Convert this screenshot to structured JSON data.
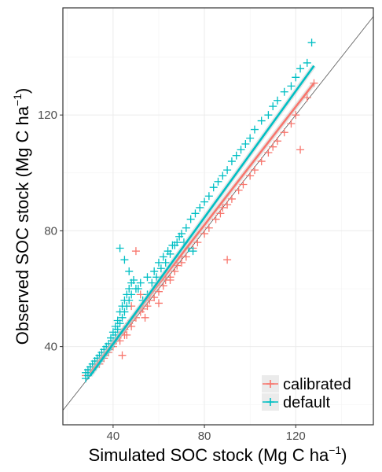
{
  "chart_data": {
    "type": "scatter",
    "title": "",
    "xlabel": "Simulated SOC stock (Mg C ha",
    "ylabel": "Observed SOC stock (Mg C ha",
    "label_superscript": "−1",
    "label_close": ")",
    "xlim": [
      18,
      154
    ],
    "ylim": [
      13,
      157
    ],
    "x_ticks": [
      40,
      80,
      120
    ],
    "y_ticks": [
      40,
      80,
      120
    ],
    "grid": true,
    "legend_position": "bottom-right",
    "reference_line": "1:1",
    "series": [
      {
        "name": "calibrated",
        "color": "#F8766D",
        "fit_line": {
          "from": [
            30,
            31
          ],
          "to": [
            128,
            131
          ]
        },
        "x": [
          28,
          29,
          30,
          31,
          32,
          33,
          33,
          34,
          35,
          35,
          36,
          37,
          37,
          38,
          39,
          40,
          40,
          41,
          42,
          43,
          43,
          44,
          45,
          45,
          46,
          47,
          48,
          48,
          50,
          52,
          53,
          55,
          56,
          58,
          60,
          62,
          63,
          65,
          67,
          70,
          72,
          75,
          77,
          80,
          82,
          85,
          87,
          88,
          90,
          92,
          95,
          97,
          100,
          102,
          105,
          108,
          110,
          112,
          115,
          118,
          120,
          122,
          125,
          128,
          44,
          46,
          48,
          50,
          52,
          54,
          60,
          65,
          90,
          68,
          70
        ],
        "y": [
          30,
          31,
          32,
          33,
          33,
          34,
          35,
          34,
          36,
          37,
          36,
          38,
          39,
          38,
          40,
          41,
          40,
          42,
          43,
          42,
          44,
          45,
          44,
          46,
          47,
          48,
          47,
          49,
          50,
          52,
          53,
          54,
          56,
          57,
          59,
          61,
          63,
          64,
          66,
          69,
          71,
          74,
          76,
          79,
          81,
          84,
          86,
          88,
          89,
          91,
          94,
          96,
          99,
          101,
          104,
          107,
          109,
          111,
          114,
          117,
          120,
          108,
          126,
          131,
          37,
          44,
          54,
          73,
          58,
          50,
          55,
          63,
          70,
          68,
          71
        ]
      },
      {
        "name": "default",
        "color": "#00BFC4",
        "fit_line": {
          "from": [
            30,
            30
          ],
          "to": [
            128,
            137
          ]
        },
        "x": [
          28,
          28,
          29,
          29,
          30,
          30,
          31,
          31,
          32,
          32,
          33,
          33,
          34,
          34,
          35,
          35,
          36,
          36,
          37,
          37,
          38,
          38,
          39,
          39,
          40,
          40,
          41,
          41,
          42,
          42,
          43,
          43,
          44,
          44,
          45,
          45,
          46,
          46,
          47,
          47,
          48,
          48,
          50,
          52,
          55,
          58,
          60,
          62,
          64,
          66,
          68,
          70,
          72,
          74,
          76,
          78,
          80,
          82,
          84,
          86,
          88,
          90,
          92,
          94,
          96,
          98,
          100,
          102,
          105,
          108,
          110,
          112,
          115,
          118,
          120,
          122,
          125,
          127,
          43,
          45,
          47,
          49,
          51,
          53,
          55,
          57,
          59,
          61,
          63,
          65,
          67,
          69,
          71,
          73,
          75
        ],
        "y": [
          29,
          31,
          30,
          32,
          31,
          33,
          32,
          34,
          33,
          35,
          34,
          36,
          35,
          37,
          36,
          38,
          37,
          39,
          38,
          40,
          39,
          41,
          40,
          43,
          42,
          45,
          44,
          47,
          46,
          49,
          48,
          52,
          50,
          54,
          52,
          56,
          54,
          58,
          56,
          60,
          58,
          62,
          60,
          62,
          64,
          66,
          69,
          71,
          73,
          75,
          76,
          79,
          81,
          84,
          86,
          88,
          90,
          92,
          95,
          97,
          99,
          101,
          104,
          106,
          108,
          110,
          112,
          115,
          118,
          120,
          123,
          125,
          128,
          130,
          133,
          136,
          138,
          145,
          74,
          70,
          66,
          63,
          60,
          56,
          58,
          62,
          64,
          67,
          69,
          72,
          75,
          78,
          76,
          74,
          73
        ]
      }
    ]
  }
}
